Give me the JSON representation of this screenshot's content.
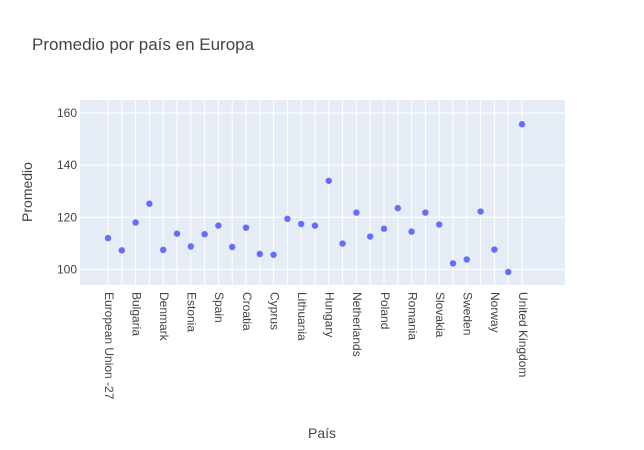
{
  "chart_data": {
    "type": "scatter",
    "title": "Promedio por país en Europa",
    "xlabel": "País",
    "ylabel": "Promedio",
    "grid": true,
    "ylim": [
      94,
      165
    ],
    "yticks": [
      100,
      120,
      140,
      160
    ],
    "x_tick_labels": [
      "European Union -27",
      "Bulgaria",
      "Denmark",
      "Estonia",
      "Spain",
      "Croatia",
      "Cyprus",
      "Lithuania",
      "Hungary",
      "Netherlands",
      "Poland",
      "Romania",
      "Slovakia",
      "Sweden",
      "Norway",
      "United Kingdom"
    ],
    "series": [
      {
        "color": "#636efa",
        "points": [
          {
            "x": "European Union -27",
            "y": 112
          },
          {
            "x": "",
            "y": 107.3
          },
          {
            "x": "Bulgaria",
            "y": 118
          },
          {
            "x": "",
            "y": 125.2
          },
          {
            "x": "Denmark",
            "y": 107.5
          },
          {
            "x": "",
            "y": 113.7
          },
          {
            "x": "Estonia",
            "y": 108.8
          },
          {
            "x": "",
            "y": 113.5
          },
          {
            "x": "Spain",
            "y": 116.8
          },
          {
            "x": "",
            "y": 108.6
          },
          {
            "x": "Croatia",
            "y": 116
          },
          {
            "x": "",
            "y": 105.9
          },
          {
            "x": "Cyprus",
            "y": 105.6
          },
          {
            "x": "",
            "y": 119.4
          },
          {
            "x": "Lithuania",
            "y": 117.4
          },
          {
            "x": "",
            "y": 116.8
          },
          {
            "x": "Hungary",
            "y": 134
          },
          {
            "x": "",
            "y": 109.9
          },
          {
            "x": "Netherlands",
            "y": 121.8
          },
          {
            "x": "",
            "y": 112.6
          },
          {
            "x": "Poland",
            "y": 115.6
          },
          {
            "x": "",
            "y": 123.5
          },
          {
            "x": "Romania",
            "y": 114.5
          },
          {
            "x": "",
            "y": 121.8
          },
          {
            "x": "Slovakia",
            "y": 117.2
          },
          {
            "x": "",
            "y": 102.3
          },
          {
            "x": "Sweden",
            "y": 103.8
          },
          {
            "x": "",
            "y": 122.2
          },
          {
            "x": "Norway",
            "y": 107.6
          },
          {
            "x": "",
            "y": 99
          },
          {
            "x": "United Kingdom",
            "y": 155.7
          }
        ]
      }
    ]
  }
}
